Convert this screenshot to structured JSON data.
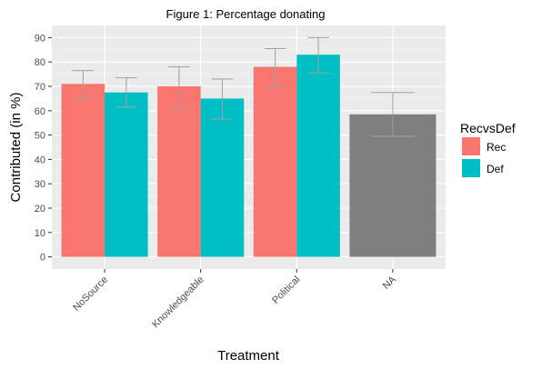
{
  "chart_data": {
    "type": "bar",
    "title": "Figure 1: Percentage donating",
    "xlabel": "Treatment",
    "ylabel": "Contributed (in %)",
    "ylim": [
      -5,
      95
    ],
    "yticks": [
      0,
      10,
      20,
      30,
      40,
      50,
      60,
      70,
      80,
      90
    ],
    "categories": [
      "NoSource",
      "Knowledgeable",
      "Political",
      "NA"
    ],
    "series": [
      {
        "name": "Rec",
        "color": "#F8766D",
        "values": [
          71,
          70,
          78,
          null
        ],
        "err_low": [
          65,
          61,
          70,
          null
        ],
        "err_high": [
          76.5,
          78,
          85.5,
          null
        ]
      },
      {
        "name": "Def",
        "color": "#00BFC4",
        "values": [
          67.5,
          65,
          83,
          null
        ],
        "err_low": [
          61.5,
          56.5,
          75.5,
          null
        ],
        "err_high": [
          73.5,
          73,
          90,
          null
        ]
      },
      {
        "name": "",
        "color": "#7F7F7F",
        "values": [
          null,
          null,
          null,
          58.5
        ],
        "err_low": [
          null,
          null,
          null,
          49.5
        ],
        "err_high": [
          null,
          null,
          null,
          67.5
        ]
      }
    ],
    "legend": {
      "title": "RecvsDef",
      "entries": [
        "Rec",
        "Def"
      ],
      "placement": "right"
    },
    "grid": true,
    "panel_background": "#EBEBEB"
  }
}
